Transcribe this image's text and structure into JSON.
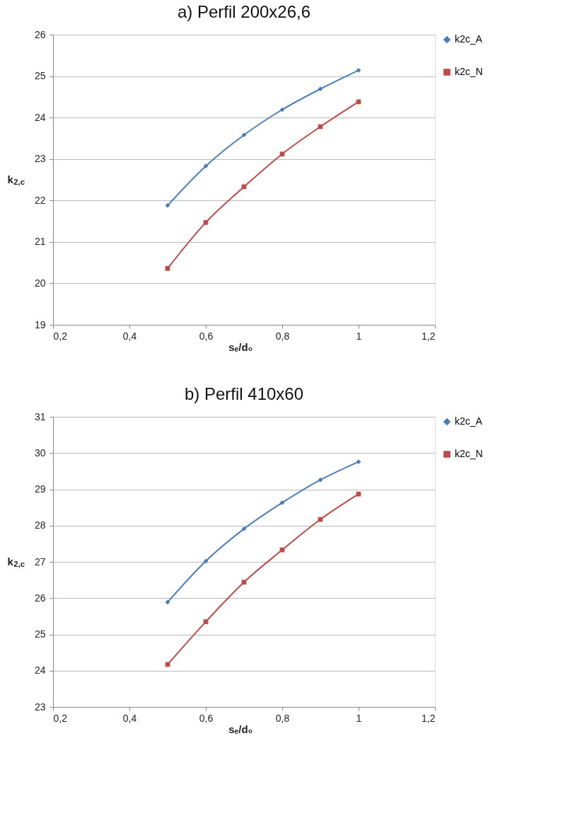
{
  "chart_data": [
    {
      "type": "line",
      "title": "a)  Perfil 200x26,6",
      "xlabel": "sₑ/d₀",
      "ylabel": "k$_{2,c}$",
      "x": [
        0.5,
        0.6,
        0.7,
        0.8,
        0.9,
        1
      ],
      "series": [
        {
          "name": "k2c_A",
          "color": "#4a7ebb",
          "marker": "diamond",
          "values": [
            21.88,
            22.83,
            23.58,
            24.19,
            24.69,
            25.14
          ]
        },
        {
          "name": "k2c_N",
          "color": "#be4b48",
          "marker": "square",
          "values": [
            20.36,
            21.47,
            22.33,
            23.12,
            23.78,
            24.38
          ]
        }
      ],
      "xlim": [
        0.2,
        1.2
      ],
      "xticks": [
        {
          "value": 0.2,
          "label": "0,2"
        },
        {
          "value": 0.4,
          "label": "0,4"
        },
        {
          "value": 0.6,
          "label": "0,6"
        },
        {
          "value": 0.8,
          "label": "0,8"
        },
        {
          "value": 1,
          "label": "1"
        },
        {
          "value": 1.2,
          "label": "1,2"
        }
      ],
      "ylim": [
        19,
        26
      ],
      "yticks": [
        19,
        20,
        21,
        22,
        23,
        24,
        25,
        26
      ],
      "grid": "y",
      "legend": "right",
      "line_style": "solid"
    },
    {
      "type": "line",
      "title": "b)  Perfil 410x60",
      "xlabel": "sₑ/d₀",
      "ylabel": "k$_{2,c}$",
      "x": [
        0.5,
        0.6,
        0.7,
        0.8,
        0.9,
        1
      ],
      "series": [
        {
          "name": "k2c_A",
          "color": "#4a7ebb",
          "marker": "diamond",
          "values": [
            25.89,
            27.02,
            27.91,
            28.63,
            29.26,
            29.76
          ]
        },
        {
          "name": "k2c_N",
          "color": "#be4b48",
          "marker": "square",
          "values": [
            24.17,
            25.35,
            26.44,
            27.33,
            28.17,
            28.87
          ]
        }
      ],
      "xlim": [
        0.2,
        1.2
      ],
      "xticks": [
        {
          "value": 0.2,
          "label": "0,2"
        },
        {
          "value": 0.4,
          "label": "0,4"
        },
        {
          "value": 0.6,
          "label": "0,6"
        },
        {
          "value": 0.8,
          "label": "0,8"
        },
        {
          "value": 1,
          "label": "1"
        },
        {
          "value": 1.2,
          "label": "1,2"
        }
      ],
      "ylim": [
        23,
        31
      ],
      "yticks": [
        23,
        24,
        25,
        26,
        27,
        28,
        29,
        30,
        31
      ],
      "grid": "y",
      "legend": "right",
      "line_style": "solid"
    }
  ]
}
